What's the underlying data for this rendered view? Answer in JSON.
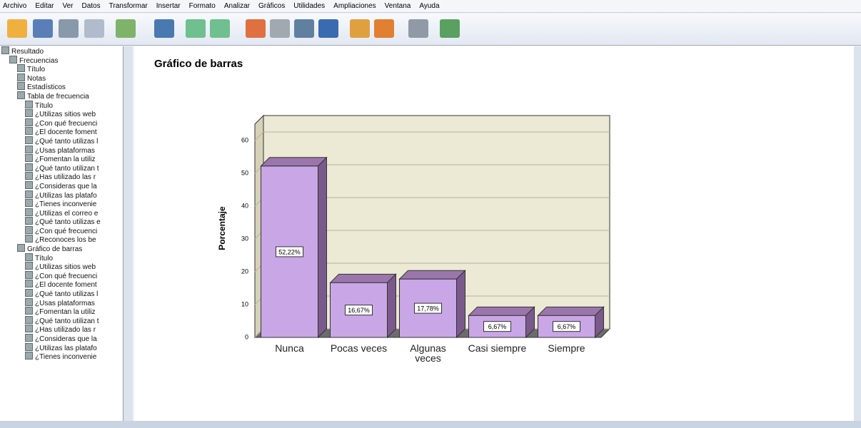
{
  "menu": [
    "Archivo",
    "Editar",
    "Ver",
    "Datos",
    "Transformar",
    "Insertar",
    "Formato",
    "Analizar",
    "Gráficos",
    "Utilidades",
    "Ampliaciones",
    "Ventana",
    "Ayuda"
  ],
  "tree": {
    "label": "Resultado",
    "children": [
      {
        "label": "Frecuencias",
        "children": [
          {
            "label": "Título"
          },
          {
            "label": "Notas"
          },
          {
            "label": "Estadísticos"
          },
          {
            "label": "Tabla de frecuencia",
            "children": [
              {
                "label": "Título"
              },
              {
                "label": "¿Utilizas sitios web"
              },
              {
                "label": "¿Con qué frecuenci"
              },
              {
                "label": "¿El docente foment"
              },
              {
                "label": "¿Qué tanto utilizas l"
              },
              {
                "label": "¿Usas plataformas"
              },
              {
                "label": "¿Fomentan la utiliz"
              },
              {
                "label": "¿Qué tanto utilizan t"
              },
              {
                "label": "¿Has utilizado las r"
              },
              {
                "label": "¿Consideras que la"
              },
              {
                "label": "¿Utilizas las platafo"
              },
              {
                "label": "¿Tienes inconvenie"
              },
              {
                "label": "¿Utilizas el correo e"
              },
              {
                "label": "¿Qué tanto utilizas e"
              },
              {
                "label": "¿Con qué frecuenci"
              },
              {
                "label": "¿Reconoces los be"
              }
            ]
          },
          {
            "label": "Gráfico de barras",
            "children": [
              {
                "label": "Título"
              },
              {
                "label": "¿Utilizas sitios web"
              },
              {
                "label": "¿Con qué frecuenci"
              },
              {
                "label": "¿El docente foment"
              },
              {
                "label": "¿Qué tanto utilizas l"
              },
              {
                "label": "¿Usas plataformas"
              },
              {
                "label": "¿Fomentan la utiliz"
              },
              {
                "label": "¿Qué tanto utilizan t"
              },
              {
                "label": "¿Has utilizado las r"
              },
              {
                "label": "¿Consideras que la"
              },
              {
                "label": "¿Utilizas las platafo"
              },
              {
                "label": "¿Tienes inconvenie"
              }
            ]
          }
        ]
      }
    ]
  },
  "output_heading": "Gráfico de barras",
  "chart_data": {
    "type": "bar",
    "y_label": "Porcentaje",
    "categories": [
      "Nunca",
      "Pocas veces",
      "Algunas veces",
      "Casi siempre",
      "Siempre"
    ],
    "values": [
      52.22,
      16.67,
      17.78,
      6.67,
      6.67
    ],
    "value_labels": [
      "52,22%",
      "16,67%",
      "17,78%",
      "6,67%",
      "6,67%"
    ],
    "color": "#c9a6e6",
    "ylim": [
      0,
      65
    ],
    "yticks": [
      0,
      10,
      20,
      30,
      40,
      50,
      60
    ]
  }
}
